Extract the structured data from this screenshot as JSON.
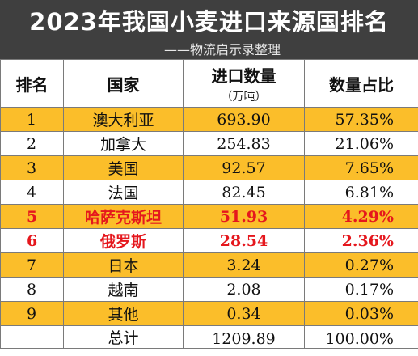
{
  "header": {
    "title": "2023年我国小麦进口来源国排名",
    "subtitle": "——物流启示录整理"
  },
  "columns": {
    "rank": "排名",
    "country": "国家",
    "qty": "进口数量",
    "qty_unit": "（万吨）",
    "share": "数量占比"
  },
  "rows": [
    {
      "rank": "1",
      "country": "澳大利亚",
      "qty": "693.90",
      "share": "57.35%"
    },
    {
      "rank": "2",
      "country": "加拿大",
      "qty": "254.83",
      "share": "21.06%"
    },
    {
      "rank": "3",
      "country": "美国",
      "qty": "92.57",
      "share": "7.65%"
    },
    {
      "rank": "4",
      "country": "法国",
      "qty": "82.45",
      "share": "6.81%"
    },
    {
      "rank": "5",
      "country": "哈萨克斯坦",
      "qty": "51.93",
      "share": "4.29%"
    },
    {
      "rank": "6",
      "country": "俄罗斯",
      "qty": "28.54",
      "share": "2.36%"
    },
    {
      "rank": "7",
      "country": "日本",
      "qty": "3.24",
      "share": "0.27%"
    },
    {
      "rank": "8",
      "country": "越南",
      "qty": "2.08",
      "share": "0.17%"
    },
    {
      "rank": "9",
      "country": "其他",
      "qty": "0.34",
      "share": "0.03%"
    }
  ],
  "total": {
    "label": "总计",
    "qty": "1209.89",
    "share": "100.00%"
  },
  "colors": {
    "highlight_row": "#fbbe2a",
    "emphasis_text": "#e5171d",
    "header_band": "#3f3f3f"
  }
}
